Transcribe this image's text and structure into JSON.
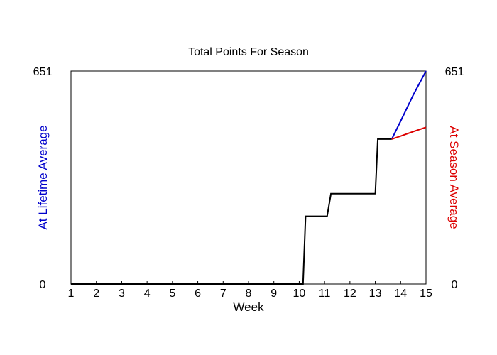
{
  "chart_data": {
    "type": "line",
    "title": "Total Points For Season",
    "xlabel": "Week",
    "ylabel_left": "At Lifetime Average",
    "ylabel_right": "At Season Average",
    "xlim": [
      1,
      15
    ],
    "ylim": [
      0,
      651
    ],
    "x_ticks": [
      "1",
      "2",
      "3",
      "4",
      "5",
      "6",
      "7",
      "8",
      "9",
      "10",
      "11",
      "12",
      "13",
      "14",
      "15"
    ],
    "y_tick_labels": [
      "0",
      "651"
    ],
    "grid": false,
    "colors": {
      "actual": "#000000",
      "lifetime": "#0000cc",
      "season": "#dd0000",
      "ylabel_left": "#0000cc",
      "ylabel_right": "#dd0000"
    },
    "series": [
      {
        "key": "actual",
        "x": [
          1,
          10.15,
          10.25,
          11.1,
          11.25,
          13.0,
          13.1,
          13.65
        ],
        "y": [
          0,
          0,
          207,
          207,
          276,
          276,
          443,
          443
        ]
      },
      {
        "key": "lifetime",
        "x": [
          13.65,
          14.0,
          14.5,
          15.0
        ],
        "y": [
          443,
          498,
          578,
          651
        ]
      },
      {
        "key": "season",
        "x": [
          13.65,
          14.0,
          14.5,
          15.0
        ],
        "y": [
          443,
          452,
          466,
          479
        ]
      }
    ]
  }
}
